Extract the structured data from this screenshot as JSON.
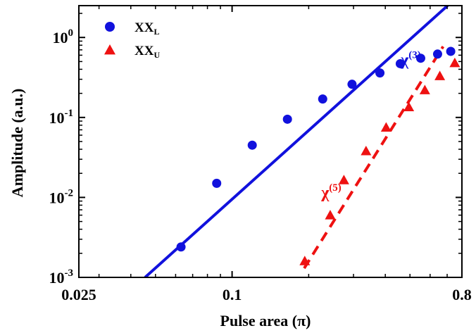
{
  "chart_data": {
    "type": "scatter",
    "xlabel": "Pulse area (π)",
    "ylabel": "Amplitude (a.u.)",
    "xscale": "log",
    "yscale": "log",
    "xlim": [
      0.025,
      0.8
    ],
    "ylim": [
      0.001,
      2.5
    ],
    "x_ticks": [
      {
        "value": 0.025,
        "label": "0.025"
      },
      {
        "value": 0.1,
        "label": "0.1"
      },
      {
        "value": 0.8,
        "label": "0.8"
      }
    ],
    "y_ticks": [
      {
        "value": 0.001,
        "base": "10",
        "exp": "-3"
      },
      {
        "value": 0.01,
        "base": "10",
        "exp": "-2"
      },
      {
        "value": 0.1,
        "base": "10",
        "exp": "-1"
      },
      {
        "value": 1,
        "base": "10",
        "exp": "0"
      }
    ],
    "legend_position": "top-left",
    "series": [
      {
        "name_main": "XX",
        "name_sub": "L",
        "color": "#1111dd",
        "marker": "circle",
        "points": [
          [
            0.063,
            0.0024
          ],
          [
            0.087,
            0.015
          ],
          [
            0.12,
            0.045
          ],
          [
            0.165,
            0.095
          ],
          [
            0.227,
            0.17
          ],
          [
            0.296,
            0.26
          ],
          [
            0.381,
            0.36
          ],
          [
            0.458,
            0.47
          ],
          [
            0.551,
            0.55
          ],
          [
            0.642,
            0.62
          ],
          [
            0.723,
            0.67
          ]
        ]
      },
      {
        "name_main": "XX",
        "name_sub": "U",
        "color": "#ee1111",
        "marker": "triangle",
        "points": [
          [
            0.193,
            0.0016
          ],
          [
            0.243,
            0.006
          ],
          [
            0.275,
            0.0165
          ],
          [
            0.336,
            0.038
          ],
          [
            0.403,
            0.075
          ],
          [
            0.495,
            0.135
          ],
          [
            0.572,
            0.22
          ],
          [
            0.655,
            0.33
          ],
          [
            0.75,
            0.48
          ]
        ]
      }
    ],
    "fit_lines": [
      {
        "label_base": "χ",
        "label_sup": "(3)",
        "color": "#1111dd",
        "dash": "solid",
        "from": [
          0.0455,
          0.001
        ],
        "to": [
          0.703,
          2.5
        ],
        "label_at": [
          0.46,
          0.45
        ]
      },
      {
        "label_base": "χ",
        "label_sup": "(5)",
        "color": "#ee1111",
        "dash": "dashed",
        "from": [
          0.192,
          0.0013
        ],
        "to": [
          0.675,
          0.77
        ],
        "label_at": [
          0.224,
          0.0099
        ]
      }
    ]
  }
}
